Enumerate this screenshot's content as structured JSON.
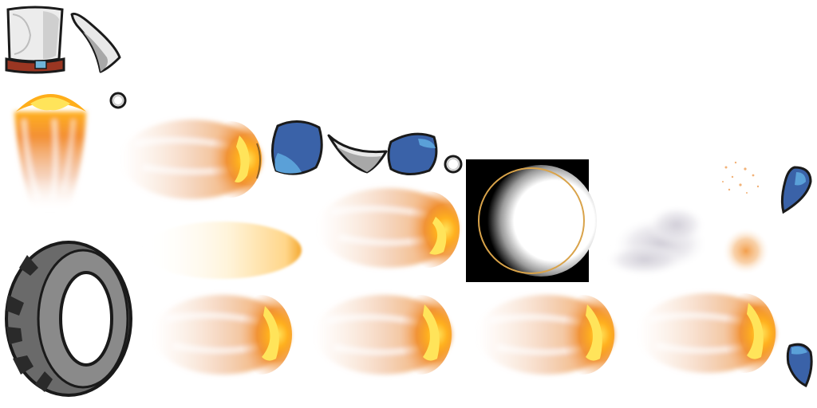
{
  "sheet": {
    "background": "#ffffff",
    "palette": {
      "outline": "#1a1a1a",
      "fire_core": "#ffd21f",
      "fire_hot": "#ffae1a",
      "fire_mid": "#f08a24",
      "fire_smoke": "#e9b98e",
      "crystal_blue": "#3a62a8",
      "crystal_light": "#5aa0d8",
      "metal_light": "#e6e6e6",
      "metal_shadow": "#a8a8a8",
      "tire_rubber": "#6a6a6a",
      "tire_dark": "#2a2a2a",
      "band_red": "#9a3622",
      "band_blue": "#6fb4d8",
      "orb_black": "#000000",
      "ring_gold": "#d9a34a",
      "dust_gray": "#d8d6dc",
      "glow_orange": "#f6b06a"
    },
    "sprites": [
      {
        "name": "bucket-icon",
        "kind": "bucket"
      },
      {
        "name": "metal-shard-icon",
        "kind": "shard"
      },
      {
        "name": "small-ring-icon",
        "kind": "ring"
      },
      {
        "name": "fire-jet-up-icon",
        "kind": "fire-up"
      },
      {
        "name": "fireball-icon",
        "kind": "fireball"
      },
      {
        "name": "blue-crystal-icon",
        "kind": "crystal"
      },
      {
        "name": "tire-icon",
        "kind": "tire"
      },
      {
        "name": "flame-streak-icon",
        "kind": "streak"
      },
      {
        "name": "dark-orb-icon",
        "kind": "orb"
      },
      {
        "name": "dust-cloud-icon",
        "kind": "dust"
      },
      {
        "name": "spark-particles-icon",
        "kind": "sparks"
      },
      {
        "name": "orange-glow-icon",
        "kind": "glow"
      },
      {
        "name": "blue-shard-icon",
        "kind": "blue-shard"
      }
    ]
  }
}
